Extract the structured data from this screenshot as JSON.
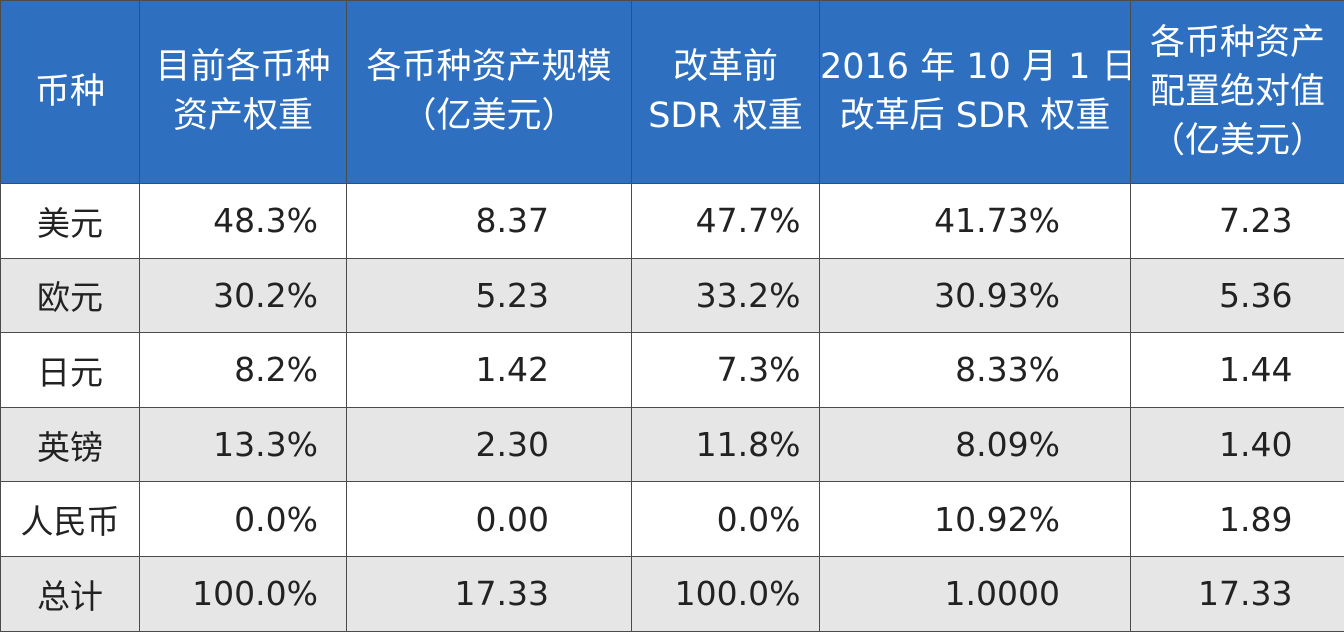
{
  "colors": {
    "header_bg": "#2e6fc0",
    "header_text": "#ffffff",
    "row_alt_bg": "#e6e6e6",
    "border": "#4b4b4b"
  },
  "header": {
    "col0": [
      "币种"
    ],
    "col1": [
      "目前各币种",
      "资产权重"
    ],
    "col2": [
      "各币种资产规模",
      "（亿美元）"
    ],
    "col3": [
      "改革前",
      "SDR 权重"
    ],
    "col4": [
      "2016 年 10 月 1 日",
      "改革后 SDR 权重"
    ],
    "col5": [
      "各币种资产",
      "配置绝对值",
      "（亿美元）"
    ]
  },
  "rows": [
    {
      "currency": "美元",
      "current_weight": "48.3%",
      "asset_scale": "8.37",
      "pre_reform_weight": "47.7%",
      "post_reform_weight": "41.73%",
      "allocation": "7.23"
    },
    {
      "currency": "欧元",
      "current_weight": "30.2%",
      "asset_scale": "5.23",
      "pre_reform_weight": "33.2%",
      "post_reform_weight": "30.93%",
      "allocation": "5.36"
    },
    {
      "currency": "日元",
      "current_weight": "8.2%",
      "asset_scale": "1.42",
      "pre_reform_weight": "7.3%",
      "post_reform_weight": "8.33%",
      "allocation": "1.44"
    },
    {
      "currency": "英镑",
      "current_weight": "13.3%",
      "asset_scale": "2.30",
      "pre_reform_weight": "11.8%",
      "post_reform_weight": "8.09%",
      "allocation": "1.40"
    },
    {
      "currency": "人民币",
      "current_weight": "0.0%",
      "asset_scale": "0.00",
      "pre_reform_weight": "0.0%",
      "post_reform_weight": "10.92%",
      "allocation": "1.89"
    },
    {
      "currency": "总计",
      "current_weight": "100.0%",
      "asset_scale": "17.33",
      "pre_reform_weight": "100.0%",
      "post_reform_weight": "1.0000",
      "allocation": "17.33"
    }
  ]
}
